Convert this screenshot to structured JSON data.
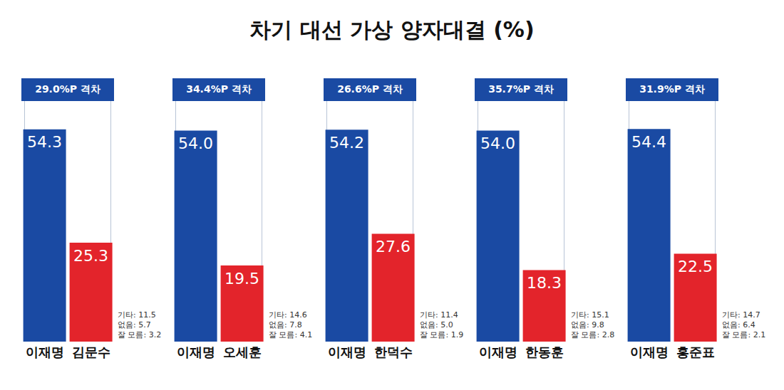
{
  "title": "차기 대선 가상 양자대결 (%)",
  "chart_data": [
    {
      "type": "bar",
      "categories": [
        "이재명",
        "김문수"
      ],
      "values": [
        54.3,
        25.3
      ],
      "value_labels": [
        "54.3",
        "25.3"
      ],
      "colors": [
        "#1a4aa3",
        "#e3242b"
      ],
      "ylim": [
        0,
        65
      ],
      "tick_labels": "x",
      "data_labels": true,
      "annotation": "29.0%P 격차",
      "notes": [
        "기타: 11.5",
        "없음: 5.7",
        "잘 모름: 3.2"
      ]
    },
    {
      "type": "bar",
      "categories": [
        "이재명",
        "오세훈"
      ],
      "values": [
        54.0,
        19.5
      ],
      "value_labels": [
        "54.0",
        "19.5"
      ],
      "colors": [
        "#1a4aa3",
        "#e3242b"
      ],
      "ylim": [
        0,
        65
      ],
      "tick_labels": "x",
      "data_labels": true,
      "annotation": "34.4%P 격차",
      "notes": [
        "기타: 14.6",
        "없음: 7.8",
        "잘 모름: 4.1"
      ]
    },
    {
      "type": "bar",
      "categories": [
        "이재명",
        "한덕수"
      ],
      "values": [
        54.2,
        27.6
      ],
      "value_labels": [
        "54.2",
        "27.6"
      ],
      "colors": [
        "#1a4aa3",
        "#e3242b"
      ],
      "ylim": [
        0,
        65
      ],
      "tick_labels": "x",
      "data_labels": true,
      "annotation": "26.6%P 격차",
      "notes": [
        "기타: 11.4",
        "없음: 5.0",
        "잘 모름: 1.9"
      ]
    },
    {
      "type": "bar",
      "categories": [
        "이재명",
        "한동훈"
      ],
      "values": [
        54.0,
        18.3
      ],
      "value_labels": [
        "54.0",
        "18.3"
      ],
      "colors": [
        "#1a4aa3",
        "#e3242b"
      ],
      "ylim": [
        0,
        65
      ],
      "tick_labels": "x",
      "data_labels": true,
      "annotation": "35.7%P 격차",
      "notes": [
        "기타: 15.1",
        "없음: 9.8",
        "잘 모름: 2.8"
      ]
    },
    {
      "type": "bar",
      "categories": [
        "이재명",
        "홍준표"
      ],
      "values": [
        54.4,
        22.5
      ],
      "value_labels": [
        "54.4",
        "22.5"
      ],
      "colors": [
        "#1a4aa3",
        "#e3242b"
      ],
      "ylim": [
        0,
        65
      ],
      "tick_labels": "x",
      "data_labels": true,
      "annotation": "31.9%P 격차",
      "notes": [
        "기타: 14.7",
        "없음: 6.4",
        "잘 모름: 2.1"
      ]
    }
  ]
}
